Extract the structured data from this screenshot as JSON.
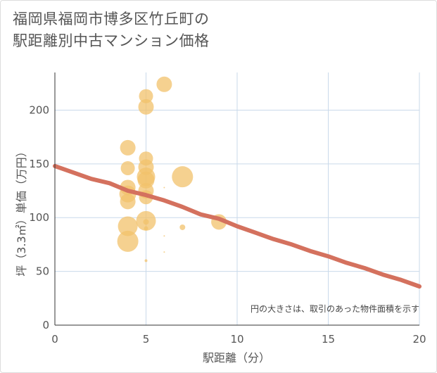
{
  "chart_data": {
    "type": "scatter",
    "title_lines": [
      "福岡県福岡市博多区竹丘町の",
      "駅距離別中古マンション価格"
    ],
    "xlabel": "駅距離（分）",
    "ylabel": "坪（3.3㎡）単価（万円）",
    "xlim": [
      0,
      20
    ],
    "ylim": [
      0,
      235
    ],
    "x_ticks": [
      0,
      5,
      10,
      15,
      20
    ],
    "y_ticks": [
      0,
      50,
      100,
      150,
      200
    ],
    "grid": true,
    "annotation": "円の大きさは、取引のあった物件面積を示す",
    "colors": {
      "bubble": "#f2c26b",
      "trend": "#d4715e",
      "grid": "#c9d9ea",
      "axis": "#333333"
    },
    "points": [
      {
        "x": 4,
        "y": 165,
        "size": 11
      },
      {
        "x": 4,
        "y": 146,
        "size": 10
      },
      {
        "x": 4,
        "y": 128,
        "size": 11
      },
      {
        "x": 4,
        "y": 122,
        "size": 12
      },
      {
        "x": 4,
        "y": 115,
        "size": 11
      },
      {
        "x": 4,
        "y": 92,
        "size": 14
      },
      {
        "x": 4,
        "y": 78,
        "size": 15
      },
      {
        "x": 5,
        "y": 213,
        "size": 10
      },
      {
        "x": 5,
        "y": 203,
        "size": 11
      },
      {
        "x": 5,
        "y": 155,
        "size": 10
      },
      {
        "x": 5,
        "y": 147,
        "size": 11
      },
      {
        "x": 5,
        "y": 138,
        "size": 13
      },
      {
        "x": 5,
        "y": 135,
        "size": 12
      },
      {
        "x": 5,
        "y": 125,
        "size": 11
      },
      {
        "x": 5,
        "y": 119,
        "size": 10
      },
      {
        "x": 5,
        "y": 97,
        "size": 14
      },
      {
        "x": 5,
        "y": 96,
        "size": 4
      },
      {
        "x": 5,
        "y": 90,
        "size": 3
      },
      {
        "x": 5,
        "y": 60,
        "size": 2
      },
      {
        "x": 6,
        "y": 224,
        "size": 11
      },
      {
        "x": 6,
        "y": 128,
        "size": 1
      },
      {
        "x": 6,
        "y": 83,
        "size": 1
      },
      {
        "x": 6,
        "y": 68,
        "size": 1
      },
      {
        "x": 7,
        "y": 138,
        "size": 15
      },
      {
        "x": 7,
        "y": 91,
        "size": 4
      },
      {
        "x": 9,
        "y": 96,
        "size": 11
      }
    ],
    "trend": {
      "name": "trend",
      "x": [
        0,
        1,
        2,
        3,
        4,
        5,
        6,
        7,
        8,
        9,
        10,
        11,
        12,
        13,
        14,
        15,
        16,
        17,
        18,
        19,
        20
      ],
      "y": [
        148,
        142,
        136,
        132,
        125,
        121,
        116,
        110,
        103,
        99,
        92,
        86,
        80,
        75,
        69,
        64,
        58,
        53,
        47,
        42,
        36
      ]
    }
  }
}
